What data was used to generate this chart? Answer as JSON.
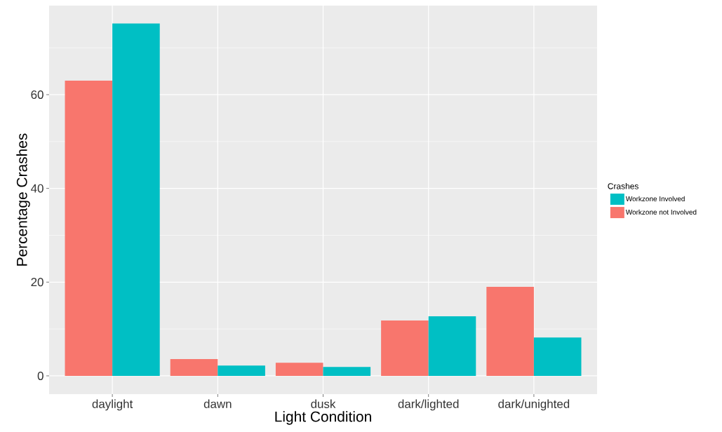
{
  "chart_data": {
    "type": "bar",
    "xlabel": "Light Condition",
    "ylabel": "Percentage Crashes",
    "legend_title": "Crashes",
    "categories": [
      "daylight",
      "dawn",
      "dusk",
      "dark/lighted",
      "dark/unighted"
    ],
    "series": [
      {
        "name": "Workzone not Involved",
        "color": "#f8766d",
        "values": [
          63.0,
          3.6,
          2.8,
          11.8,
          19.0
        ]
      },
      {
        "name": "Workzone Involved",
        "color": "#00bfc4",
        "values": [
          75.2,
          2.2,
          1.9,
          12.7,
          8.2
        ]
      }
    ],
    "ylim": [
      -3.9,
      79
    ],
    "yticks": [
      0,
      20,
      40,
      60
    ],
    "grid": true,
    "legend": "right"
  }
}
